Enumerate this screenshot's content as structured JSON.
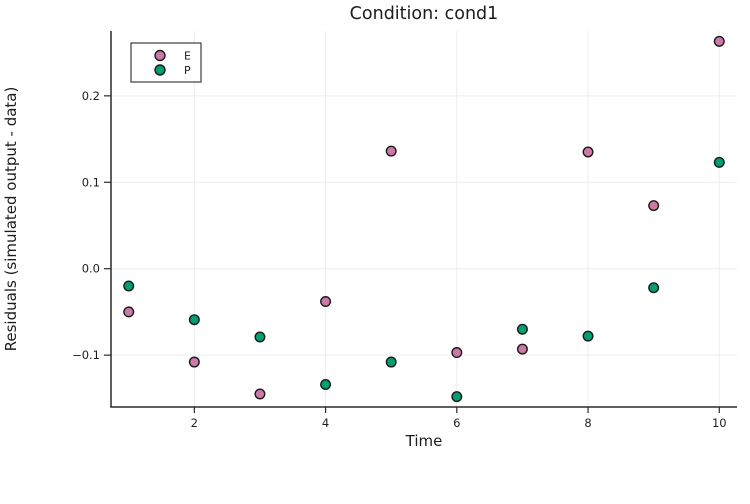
{
  "figure": {
    "background": "#ffffff"
  },
  "chart_data": {
    "type": "scatter",
    "title": "Condition: cond1",
    "xlabel": "Time",
    "ylabel": "Residuals (simulated output - data)",
    "x": [
      1,
      2,
      3,
      4,
      5,
      6,
      7,
      8,
      9,
      10
    ],
    "series": [
      {
        "name": "E",
        "marker_color": "#CC79A7",
        "marker_stroke": "#1a1a1a",
        "values": [
          -0.05,
          -0.108,
          -0.145,
          -0.038,
          0.136,
          -0.097,
          -0.093,
          0.135,
          0.073,
          0.263
        ]
      },
      {
        "name": "P",
        "marker_color": "#009E73",
        "marker_stroke": "#1a1a1a",
        "values": [
          -0.02,
          -0.059,
          -0.079,
          -0.134,
          -0.108,
          -0.148,
          -0.07,
          -0.078,
          -0.022,
          0.123
        ]
      }
    ],
    "xlim": [
      0.73,
      10.27
    ],
    "ylim": [
      -0.16,
      0.275
    ],
    "xticks": [
      2,
      4,
      6,
      8,
      10
    ],
    "yticks": [
      -0.1,
      0.0,
      0.1,
      0.2
    ],
    "grid": true,
    "legend_position": "top-left"
  },
  "style": {
    "grid_color": "#ededed",
    "spine_color": "#2a2a2a",
    "tick_color": "#2a2a2a",
    "text_color": "#1c1c1c",
    "legend_border_color": "#3d3d3d",
    "legend_background": "#ffffff"
  }
}
